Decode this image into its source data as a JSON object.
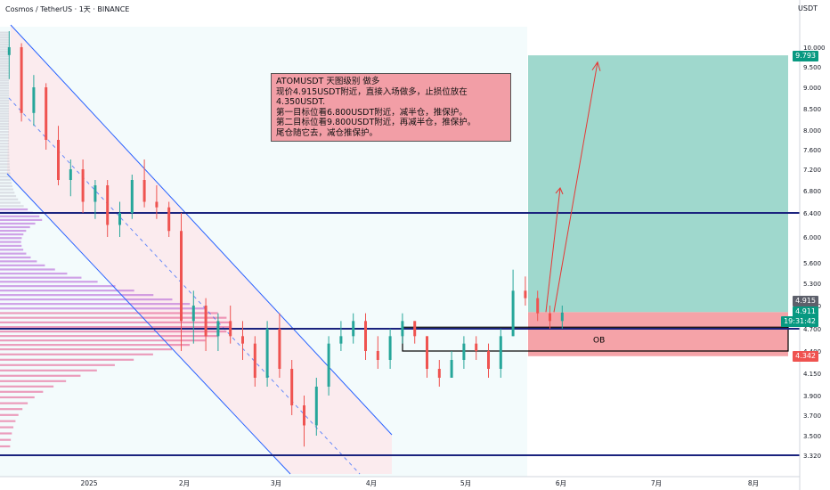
{
  "header": {
    "title": "Cosmos / TetherUS · 1天 · BINANCE",
    "currency": "USDT"
  },
  "note": {
    "lines": [
      "ATOMUSDT 天图级别 做多",
      "现价4.915USDT附近，直接入场做多，止损位放在4.350USDT.",
      "第一目标位看6.800USDT附近，减半仓，推保护。",
      "第二目标位看9.800USDT附近，再减半仓，推保护。",
      "尾仓随它去，减仓推保护。"
    ]
  },
  "zone_label": "OB",
  "price_tags": {
    "target": "9.793",
    "current_a": "4.915",
    "current_b": "4.911",
    "countdown": "19:31:42",
    "stop": "4.342"
  },
  "colors": {
    "up": "#26a69a",
    "down": "#ef5350",
    "level": "#1a237e",
    "channel": "#2962ff",
    "tp_zone": "#9fd8cd",
    "sl_zone": "#f5a3a8"
  },
  "chart_data": {
    "type": "candlestick",
    "y_ticks": [
      "10.000",
      "9.500",
      "9.000",
      "8.500",
      "8.000",
      "7.600",
      "7.200",
      "6.800",
      "6.400",
      "6.000",
      "5.600",
      "5.300",
      "5.000",
      "4.700",
      "4.400",
      "4.150",
      "3.900",
      "3.700",
      "3.500",
      "3.320"
    ],
    "x_ticks": [
      "2025",
      "2月",
      "3月",
      "4月",
      "5月",
      "6月",
      "7月",
      "8月"
    ],
    "horizontal_levels": [
      6.4,
      4.7,
      3.32
    ],
    "ob_zone": [
      4.4,
      4.72
    ],
    "entry": 4.915,
    "stop_loss": 4.342,
    "target": 9.793,
    "candles": [
      {
        "d": "12-02",
        "o": 10.2,
        "h": 10.6,
        "l": 9.7,
        "c": 9.8
      },
      {
        "d": "12-06",
        "o": 9.8,
        "h": 10.4,
        "l": 9.2,
        "c": 10.0
      },
      {
        "d": "12-10",
        "o": 10.0,
        "h": 10.1,
        "l": 8.2,
        "c": 8.4
      },
      {
        "d": "12-14",
        "o": 8.4,
        "h": 9.3,
        "l": 8.1,
        "c": 9.0
      },
      {
        "d": "12-18",
        "o": 9.0,
        "h": 9.1,
        "l": 7.6,
        "c": 7.8
      },
      {
        "d": "12-22",
        "o": 7.8,
        "h": 8.1,
        "l": 6.9,
        "c": 7.0
      },
      {
        "d": "12-26",
        "o": 7.0,
        "h": 7.4,
        "l": 6.7,
        "c": 7.2
      },
      {
        "d": "12-30",
        "o": 7.2,
        "h": 7.4,
        "l": 6.4,
        "c": 6.6
      },
      {
        "d": "01-03",
        "o": 6.6,
        "h": 7.0,
        "l": 6.3,
        "c": 6.9
      },
      {
        "d": "01-07",
        "o": 6.9,
        "h": 7.0,
        "l": 6.0,
        "c": 6.2
      },
      {
        "d": "01-11",
        "o": 6.2,
        "h": 6.6,
        "l": 6.0,
        "c": 6.4
      },
      {
        "d": "01-15",
        "o": 6.4,
        "h": 7.1,
        "l": 6.3,
        "c": 7.0
      },
      {
        "d": "01-19",
        "o": 7.0,
        "h": 7.4,
        "l": 6.5,
        "c": 6.6
      },
      {
        "d": "01-23",
        "o": 6.6,
        "h": 6.9,
        "l": 6.3,
        "c": 6.5
      },
      {
        "d": "01-27",
        "o": 6.5,
        "h": 6.6,
        "l": 6.0,
        "c": 6.1
      },
      {
        "d": "01-31",
        "o": 6.1,
        "h": 6.4,
        "l": 4.4,
        "c": 4.8
      },
      {
        "d": "02-04",
        "o": 4.8,
        "h": 5.2,
        "l": 4.5,
        "c": 5.0
      },
      {
        "d": "02-08",
        "o": 5.0,
        "h": 5.1,
        "l": 4.4,
        "c": 4.6
      },
      {
        "d": "02-12",
        "o": 4.6,
        "h": 4.9,
        "l": 4.4,
        "c": 4.8
      },
      {
        "d": "02-16",
        "o": 4.8,
        "h": 5.0,
        "l": 4.5,
        "c": 4.6
      },
      {
        "d": "02-20",
        "o": 4.6,
        "h": 4.8,
        "l": 4.3,
        "c": 4.5
      },
      {
        "d": "02-24",
        "o": 4.5,
        "h": 4.6,
        "l": 4.0,
        "c": 4.1
      },
      {
        "d": "02-28",
        "o": 4.1,
        "h": 4.8,
        "l": 4.0,
        "c": 4.7
      },
      {
        "d": "03-04",
        "o": 4.7,
        "h": 4.9,
        "l": 4.1,
        "c": 4.2
      },
      {
        "d": "03-08",
        "o": 4.2,
        "h": 4.3,
        "l": 3.7,
        "c": 3.8
      },
      {
        "d": "03-12",
        "o": 3.8,
        "h": 3.9,
        "l": 3.4,
        "c": 3.6
      },
      {
        "d": "03-16",
        "o": 3.6,
        "h": 4.1,
        "l": 3.5,
        "c": 4.0
      },
      {
        "d": "03-20",
        "o": 4.0,
        "h": 4.6,
        "l": 3.9,
        "c": 4.5
      },
      {
        "d": "03-24",
        "o": 4.5,
        "h": 4.8,
        "l": 4.4,
        "c": 4.6
      },
      {
        "d": "03-28",
        "o": 4.6,
        "h": 4.9,
        "l": 4.5,
        "c": 4.8
      },
      {
        "d": "04-01",
        "o": 4.8,
        "h": 4.9,
        "l": 4.3,
        "c": 4.4
      },
      {
        "d": "04-05",
        "o": 4.4,
        "h": 4.6,
        "l": 4.2,
        "c": 4.3
      },
      {
        "d": "04-09",
        "o": 4.3,
        "h": 4.7,
        "l": 4.2,
        "c": 4.6
      },
      {
        "d": "04-13",
        "o": 4.6,
        "h": 4.9,
        "l": 4.5,
        "c": 4.8
      },
      {
        "d": "04-17",
        "o": 4.8,
        "h": 4.8,
        "l": 4.5,
        "c": 4.6
      },
      {
        "d": "04-21",
        "o": 4.6,
        "h": 4.6,
        "l": 4.1,
        "c": 4.2
      },
      {
        "d": "04-25",
        "o": 4.2,
        "h": 4.3,
        "l": 4.0,
        "c": 4.1
      },
      {
        "d": "04-29",
        "o": 4.1,
        "h": 4.4,
        "l": 4.1,
        "c": 4.3
      },
      {
        "d": "05-03",
        "o": 4.3,
        "h": 4.6,
        "l": 4.2,
        "c": 4.5
      },
      {
        "d": "05-07",
        "o": 4.5,
        "h": 4.6,
        "l": 4.3,
        "c": 4.4
      },
      {
        "d": "05-11",
        "o": 4.4,
        "h": 4.5,
        "l": 4.1,
        "c": 4.2
      },
      {
        "d": "05-15",
        "o": 4.2,
        "h": 4.7,
        "l": 4.1,
        "c": 4.6
      },
      {
        "d": "05-19",
        "o": 4.6,
        "h": 5.5,
        "l": 4.6,
        "c": 5.2
      },
      {
        "d": "05-23",
        "o": 5.2,
        "h": 5.4,
        "l": 5.0,
        "c": 5.1
      },
      {
        "d": "05-27",
        "o": 5.1,
        "h": 5.2,
        "l": 4.8,
        "c": 4.9
      },
      {
        "d": "05-31",
        "o": 4.9,
        "h": 5.0,
        "l": 4.7,
        "c": 4.8
      },
      {
        "d": "06-04",
        "o": 4.8,
        "h": 5.0,
        "l": 4.7,
        "c": 4.91
      }
    ]
  }
}
